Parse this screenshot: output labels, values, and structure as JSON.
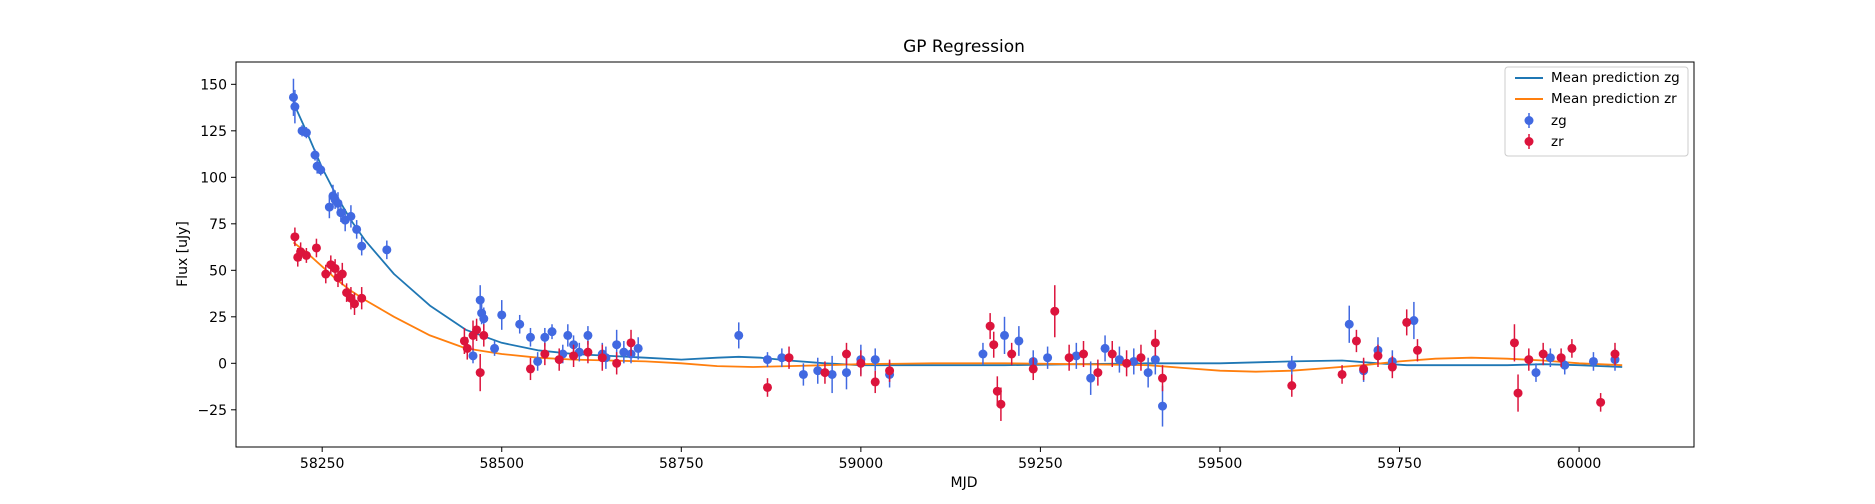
{
  "chart_data": {
    "type": "scatter",
    "title": "GP Regression",
    "xlabel": "MJD",
    "ylabel": "Flux [uJy]",
    "xlim": [
      58130,
      60160
    ],
    "ylim": [
      -45,
      162
    ],
    "xticks": [
      58250,
      58500,
      58750,
      59000,
      59250,
      59500,
      59750,
      60000
    ],
    "yticks": [
      -25,
      0,
      25,
      50,
      75,
      100,
      125,
      150
    ],
    "grid": false,
    "legend_position": "top-right",
    "colors": {
      "mean_zg": "#1f77b4",
      "mean_zr": "#ff7f0e",
      "zg": "#4169e1",
      "zr": "#dc143c"
    },
    "series": [
      {
        "name": "Mean prediction zg",
        "kind": "line",
        "color": "#1f77b4",
        "x": [
          58210,
          58230,
          58250,
          58270,
          58290,
          58310,
          58350,
          58400,
          58450,
          58500,
          58550,
          58600,
          58650,
          58700,
          58750,
          58800,
          58830,
          58860,
          58900,
          58950,
          59000,
          59100,
          59200,
          59300,
          59400,
          59500,
          59600,
          59670,
          59720,
          59760,
          59800,
          59850,
          59900,
          59950,
          60000,
          60060
        ],
        "y": [
          140,
          123,
          105,
          90,
          77,
          66,
          48,
          31,
          18,
          11,
          7,
          5,
          4,
          3,
          2,
          3,
          3.5,
          3,
          1.5,
          0,
          -1,
          -1,
          -1,
          -0.5,
          0,
          0,
          1,
          1.5,
          0,
          -1,
          -1,
          -1,
          -1,
          -0.5,
          -1,
          -2
        ]
      },
      {
        "name": "Mean prediction zr",
        "kind": "line",
        "color": "#ff7f0e",
        "x": [
          58210,
          58230,
          58250,
          58270,
          58290,
          58310,
          58350,
          58400,
          58450,
          58500,
          58550,
          58600,
          58650,
          58700,
          58750,
          58800,
          58850,
          58900,
          58950,
          59000,
          59100,
          59200,
          59300,
          59400,
          59450,
          59500,
          59550,
          59600,
          59650,
          59700,
          59750,
          59800,
          59850,
          59900,
          59950,
          60000,
          60060
        ],
        "y": [
          65,
          59,
          52,
          45,
          39,
          34,
          25,
          15,
          8,
          5,
          3,
          2,
          1.5,
          1,
          0,
          -1.5,
          -2,
          -1.5,
          -1,
          -0.5,
          0,
          0,
          -0.5,
          -1,
          -2.5,
          -4,
          -4.5,
          -4,
          -2.5,
          -1,
          1,
          2.5,
          3,
          2.5,
          1.5,
          0,
          -1
        ]
      },
      {
        "name": "zg",
        "kind": "errorbar",
        "color": "#4169e1",
        "x": [
          58210,
          58212,
          58222,
          58228,
          58240,
          58243,
          58248,
          58260,
          58265,
          58268,
          58272,
          58276,
          58282,
          58290,
          58298,
          58305,
          58340,
          58460,
          58470,
          58472,
          58475,
          58490,
          58500,
          58525,
          58540,
          58550,
          58560,
          58570,
          58585,
          58592,
          58600,
          58608,
          58620,
          58640,
          58645,
          58660,
          58670,
          58680,
          58690,
          58830,
          58870,
          58890,
          58920,
          58940,
          58960,
          58980,
          59000,
          59020,
          59040,
          59600,
          59680,
          59700,
          59720,
          59740,
          59770,
          59940,
          59960,
          59980,
          60020,
          60050,
          59170,
          59200,
          59220,
          59240,
          59260,
          59300,
          59320,
          59340,
          59360,
          59380,
          59400,
          59410,
          59420
        ],
        "y": [
          143,
          138,
          125,
          124,
          112,
          106,
          104,
          84,
          90,
          88,
          86,
          81,
          77,
          79,
          72,
          63,
          61,
          4,
          34,
          27,
          24,
          8,
          26,
          21,
          14,
          1,
          14,
          17,
          5,
          15,
          10,
          6,
          15,
          5,
          3,
          10,
          6,
          5,
          8,
          15,
          2,
          3,
          -6,
          -4,
          -6,
          -5,
          2,
          2,
          -6,
          -1,
          21,
          -4,
          7,
          1,
          23,
          -5,
          3,
          -1,
          1,
          2,
          5,
          15,
          12,
          1,
          3,
          4,
          -8,
          8,
          2,
          1,
          -5,
          2,
          -23
        ],
        "err": [
          10,
          9,
          3,
          3,
          3,
          4,
          3,
          6,
          6,
          5,
          6,
          5,
          6,
          6,
          5,
          5,
          5,
          4,
          8,
          6,
          6,
          4,
          8,
          5,
          5,
          5,
          5,
          4,
          5,
          6,
          5,
          5,
          5,
          6,
          6,
          8,
          6,
          5,
          6,
          7,
          4,
          5,
          6,
          7,
          10,
          9,
          8,
          6,
          7,
          5,
          10,
          6,
          7,
          6,
          10,
          5,
          5,
          5,
          5,
          6,
          6,
          10,
          8,
          6,
          6,
          7,
          9,
          7,
          7,
          7,
          8,
          8,
          11
        ]
      },
      {
        "name": "zr",
        "kind": "errorbar",
        "color": "#dc143c",
        "x": [
          58212,
          58216,
          58220,
          58228,
          58242,
          58255,
          58262,
          58268,
          58272,
          58278,
          58284,
          58290,
          58295,
          58305,
          58448,
          58452,
          58460,
          58465,
          58470,
          58475,
          58540,
          58560,
          58580,
          58600,
          58620,
          58640,
          58660,
          58680,
          58870,
          58900,
          58950,
          58980,
          59000,
          59020,
          59040,
          59180,
          59185,
          59190,
          59195,
          59210,
          59240,
          59270,
          59290,
          59310,
          59330,
          59350,
          59370,
          59390,
          59410,
          59420,
          59600,
          59670,
          59690,
          59700,
          59720,
          59740,
          59760,
          59775,
          59910,
          59915,
          59930,
          59950,
          59975,
          59990,
          60030,
          60050
        ],
        "y": [
          68,
          57,
          60,
          58,
          62,
          48,
          53,
          51,
          46,
          48,
          38,
          35,
          32,
          35,
          12,
          8,
          15,
          18,
          -5,
          15,
          -3,
          5,
          2,
          4,
          6,
          3,
          0,
          11,
          -13,
          3,
          -5,
          5,
          0,
          -10,
          -4,
          20,
          10,
          -15,
          -22,
          5,
          -3,
          28,
          3,
          5,
          -5,
          5,
          0,
          3,
          11,
          -8,
          -12,
          -6,
          12,
          -3,
          4,
          -2,
          22,
          7,
          11,
          -16,
          2,
          5,
          3,
          8,
          -21,
          5
        ],
        "err": [
          5,
          5,
          5,
          4,
          5,
          5,
          5,
          5,
          5,
          6,
          5,
          6,
          6,
          6,
          7,
          6,
          8,
          6,
          10,
          6,
          6,
          6,
          6,
          6,
          6,
          7,
          6,
          7,
          5,
          6,
          6,
          6,
          7,
          6,
          6,
          7,
          7,
          8,
          9,
          6,
          6,
          14,
          7,
          7,
          7,
          7,
          7,
          7,
          7,
          7,
          6,
          5,
          6,
          6,
          6,
          6,
          7,
          6,
          10,
          10,
          6,
          6,
          5,
          5,
          5,
          6
        ]
      }
    ]
  }
}
